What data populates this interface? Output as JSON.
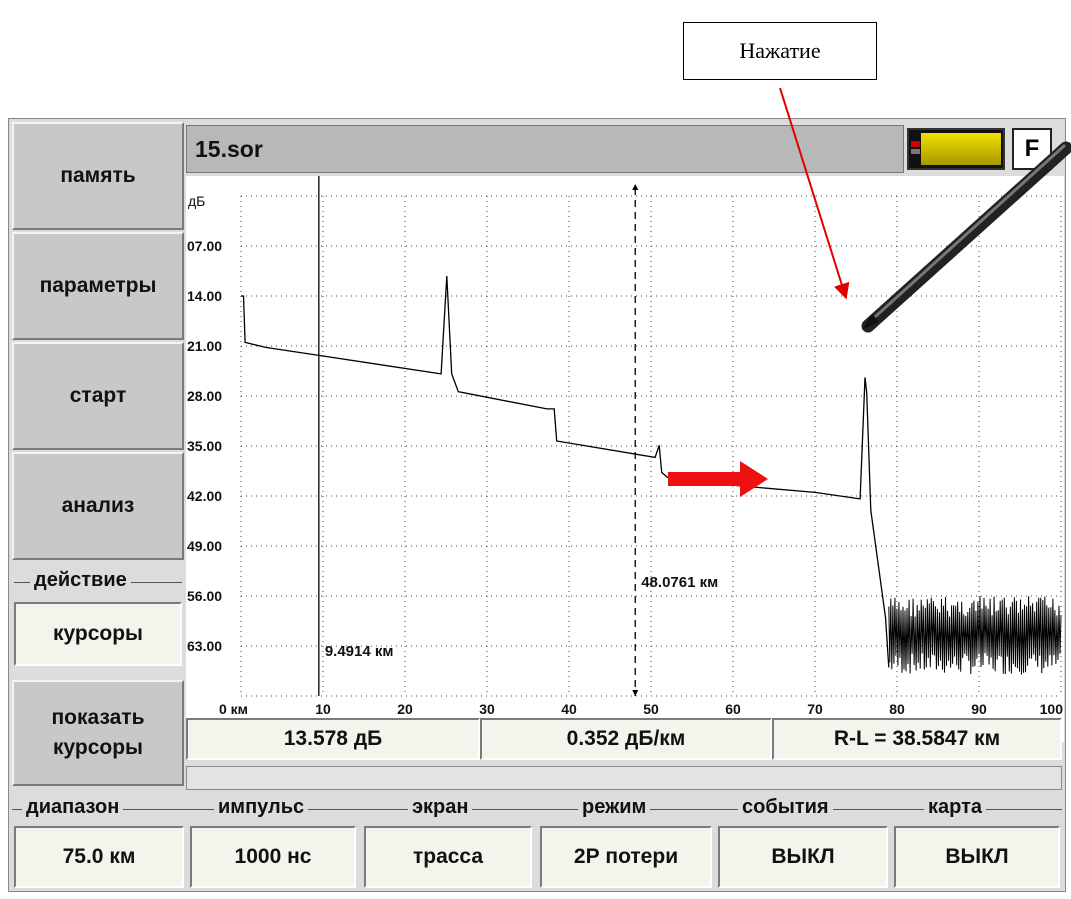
{
  "annotation": {
    "callout_text": "Нажатие",
    "arrow_color": "#e00000"
  },
  "title_bar": {
    "file_name": "15.sor",
    "f_button": "F"
  },
  "sidebar": {
    "buttons": [
      "память",
      "параметры",
      "старт",
      "анализ"
    ],
    "action_group": {
      "label": "действие",
      "value": "курсоры"
    },
    "show_cursors": [
      "показать",
      "курсоры"
    ]
  },
  "chart_data": {
    "type": "line",
    "y_unit_label": "дБ",
    "y_ticks": [
      "07.00",
      "14.00",
      "21.00",
      "28.00",
      "35.00",
      "42.00",
      "49.00",
      "56.00",
      "63.00"
    ],
    "x_ticks": [
      "0 км",
      "10",
      "20",
      "30",
      "40",
      "50",
      "60",
      "70",
      "80",
      "90",
      "100"
    ],
    "x_range": [
      0,
      100
    ],
    "y_range": [
      0,
      70
    ],
    "y_inverted": true,
    "grid": true,
    "trace": [
      [
        0,
        14
      ],
      [
        0.3,
        14
      ],
      [
        0.5,
        20.5
      ],
      [
        3,
        21.2
      ],
      [
        10,
        22.4
      ],
      [
        24.4,
        24.9
      ],
      [
        25.1,
        11.2
      ],
      [
        25.7,
        24.9
      ],
      [
        26.5,
        27.4
      ],
      [
        37.3,
        29.8
      ],
      [
        38.2,
        29.8
      ],
      [
        38.5,
        34.3
      ],
      [
        50.5,
        36.6
      ],
      [
        51,
        34.9
      ],
      [
        51.3,
        38.7
      ],
      [
        52,
        39.4
      ],
      [
        61,
        40.6
      ],
      [
        70,
        41.5
      ],
      [
        75.5,
        42.4
      ],
      [
        76.1,
        25.4
      ],
      [
        76.3,
        27.5
      ],
      [
        76.8,
        44
      ],
      [
        78.6,
        59
      ],
      [
        79,
        66
      ]
    ],
    "noise_x_range": [
      79,
      100
    ],
    "noise_y_range": [
      56,
      67
    ],
    "cursor_solid": {
      "x": 9.4914,
      "label": "9.4914 км"
    },
    "cursor_dashed": {
      "x": 48.0761,
      "label": "48.0761 км"
    }
  },
  "measurements": {
    "loss": "13.578 дБ",
    "attenuation": "0.352 дБ/км",
    "distance": "R-L = 38.5847 км"
  },
  "bottom_groups": [
    {
      "label": "диапазон",
      "value": "75.0 км"
    },
    {
      "label": "импульс",
      "value": "1000 нс"
    },
    {
      "label": "экран",
      "value": "трасса"
    },
    {
      "label": "режим",
      "value": "2Р потери"
    },
    {
      "label": "события",
      "value": "ВЫКЛ"
    },
    {
      "label": "карта",
      "value": "ВЫКЛ"
    }
  ]
}
